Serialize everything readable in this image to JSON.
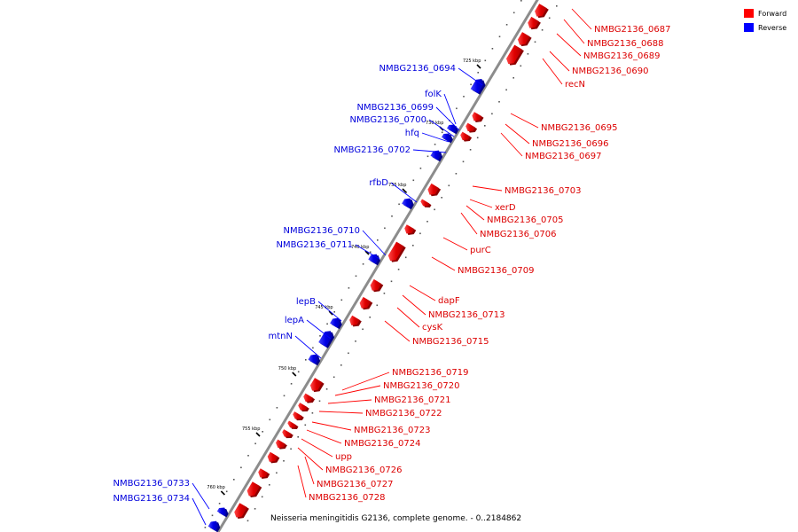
{
  "caption": "Neisseria meningitidis G2136, complete genome. - 0..2184862",
  "legend": {
    "forward": {
      "label": "Forward",
      "color": "#ff0000"
    },
    "reverse": {
      "label": "Reverse",
      "color": "#0000ff"
    }
  },
  "ticks": [
    "725 kbp",
    "730 kbp",
    "735 kbp",
    "740 kbp",
    "745 kbp",
    "750 kbp",
    "755 kbp",
    "760 kbp"
  ],
  "forward_labels": [
    "NMBG2136_0687",
    "NMBG2136_0688",
    "NMBG2136_0689",
    "NMBG2136_0690",
    "recN",
    "NMBG2136_0695",
    "NMBG2136_0696",
    "NMBG2136_0697",
    "NMBG2136_0703",
    "xerD",
    "NMBG2136_0705",
    "NMBG2136_0706",
    "purC",
    "NMBG2136_0709",
    "dapF",
    "NMBG2136_0713",
    "cysK",
    "NMBG2136_0715",
    "NMBG2136_0719",
    "NMBG2136_0720",
    "NMBG2136_0721",
    "NMBG2136_0722",
    "NMBG2136_0723",
    "NMBG2136_0724",
    "upp",
    "NMBG2136_0726",
    "NMBG2136_0727",
    "NMBG2136_0728"
  ],
  "reverse_labels": [
    "NMBG2136_0694",
    "folK",
    "NMBG2136_0699",
    "NMBG2136_0700",
    "hfq",
    "NMBG2136_0702",
    "rfbD",
    "NMBG2136_0710",
    "NMBG2136_0711",
    "lepB",
    "lepA",
    "mtnN",
    "NMBG2136_0733",
    "NMBG2136_0734"
  ]
}
